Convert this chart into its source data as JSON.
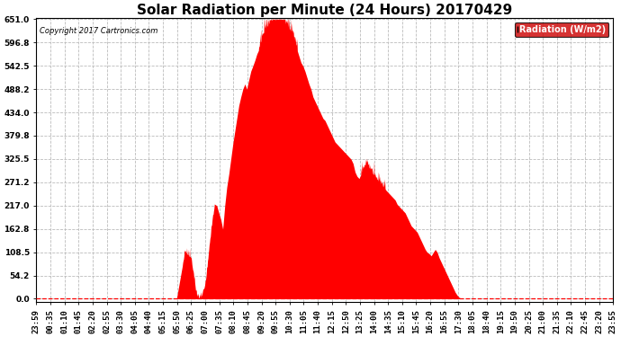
{
  "title": "Solar Radiation per Minute (24 Hours) 20170429",
  "copyright_text": "Copyright 2017 Cartronics.com",
  "legend_label": "Radiation (W/m2)",
  "ylabel_ticks": [
    0.0,
    54.2,
    108.5,
    162.8,
    217.0,
    271.2,
    325.5,
    379.8,
    434.0,
    488.2,
    542.5,
    596.8,
    651.0
  ],
  "ymax": 651.0,
  "ymin": 0.0,
  "fill_color": "#ff0000",
  "line_color": "#ff0000",
  "background_color": "#ffffff",
  "grid_color": "#bbbbbb",
  "dashed_zero_color": "#ff0000",
  "title_fontsize": 11,
  "tick_fontsize": 6.5,
  "legend_bg": "#cc0000",
  "legend_text_color": "#ffffff",
  "x_tick_labels": [
    "23:59",
    "00:35",
    "01:10",
    "01:45",
    "02:20",
    "02:55",
    "03:30",
    "04:05",
    "04:40",
    "05:15",
    "05:50",
    "06:25",
    "07:00",
    "07:35",
    "08:10",
    "08:45",
    "09:20",
    "09:55",
    "10:30",
    "11:05",
    "11:40",
    "12:15",
    "12:50",
    "13:25",
    "14:00",
    "14:35",
    "15:10",
    "15:45",
    "16:20",
    "16:55",
    "17:30",
    "18:05",
    "18:40",
    "19:15",
    "19:50",
    "20:25",
    "21:00",
    "21:35",
    "22:10",
    "22:45",
    "23:20",
    "23:55"
  ],
  "radiation_keypoints": [
    [
      0,
      0
    ],
    [
      349,
      0
    ],
    [
      350,
      2
    ],
    [
      370,
      108
    ],
    [
      385,
      95
    ],
    [
      390,
      60
    ],
    [
      395,
      30
    ],
    [
      400,
      5
    ],
    [
      405,
      0
    ],
    [
      410,
      2
    ],
    [
      415,
      10
    ],
    [
      420,
      30
    ],
    [
      425,
      60
    ],
    [
      430,
      108
    ],
    [
      435,
      150
    ],
    [
      440,
      190
    ],
    [
      445,
      220
    ],
    [
      450,
      217
    ],
    [
      455,
      200
    ],
    [
      460,
      185
    ],
    [
      465,
      162
    ],
    [
      470,
      217
    ],
    [
      475,
      260
    ],
    [
      480,
      290
    ],
    [
      485,
      325
    ],
    [
      490,
      360
    ],
    [
      495,
      390
    ],
    [
      500,
      420
    ],
    [
      505,
      450
    ],
    [
      510,
      470
    ],
    [
      515,
      488
    ],
    [
      520,
      500
    ],
    [
      525,
      488
    ],
    [
      530,
      510
    ],
    [
      535,
      530
    ],
    [
      540,
      542
    ],
    [
      545,
      555
    ],
    [
      550,
      570
    ],
    [
      555,
      580
    ],
    [
      560,
      596
    ],
    [
      565,
      610
    ],
    [
      570,
      620
    ],
    [
      575,
      630
    ],
    [
      580,
      638
    ],
    [
      585,
      645
    ],
    [
      590,
      651
    ],
    [
      595,
      648
    ],
    [
      600,
      645
    ],
    [
      605,
      648
    ],
    [
      610,
      651
    ],
    [
      615,
      648
    ],
    [
      620,
      640
    ],
    [
      625,
      635
    ],
    [
      630,
      628
    ],
    [
      635,
      620
    ],
    [
      640,
      610
    ],
    [
      645,
      596
    ],
    [
      650,
      580
    ],
    [
      655,
      565
    ],
    [
      660,
      550
    ],
    [
      665,
      542
    ],
    [
      670,
      530
    ],
    [
      675,
      515
    ],
    [
      680,
      500
    ],
    [
      685,
      488
    ],
    [
      690,
      470
    ],
    [
      695,
      460
    ],
    [
      700,
      450
    ],
    [
      705,
      440
    ],
    [
      710,
      430
    ],
    [
      715,
      420
    ],
    [
      720,
      415
    ],
    [
      725,
      405
    ],
    [
      730,
      395
    ],
    [
      735,
      385
    ],
    [
      740,
      375
    ],
    [
      745,
      365
    ],
    [
      750,
      360
    ],
    [
      755,
      355
    ],
    [
      760,
      350
    ],
    [
      765,
      345
    ],
    [
      770,
      340
    ],
    [
      775,
      335
    ],
    [
      780,
      330
    ],
    [
      785,
      325
    ],
    [
      790,
      315
    ],
    [
      795,
      295
    ],
    [
      800,
      285
    ],
    [
      805,
      280
    ],
    [
      810,
      290
    ],
    [
      815,
      300
    ],
    [
      820,
      310
    ],
    [
      825,
      315
    ],
    [
      830,
      305
    ],
    [
      835,
      295
    ],
    [
      840,
      285
    ],
    [
      845,
      280
    ],
    [
      850,
      275
    ],
    [
      855,
      270
    ],
    [
      860,
      265
    ],
    [
      865,
      260
    ],
    [
      870,
      255
    ],
    [
      875,
      250
    ],
    [
      880,
      245
    ],
    [
      885,
      240
    ],
    [
      890,
      235
    ],
    [
      895,
      230
    ],
    [
      900,
      220
    ],
    [
      905,
      215
    ],
    [
      910,
      210
    ],
    [
      915,
      205
    ],
    [
      920,
      200
    ],
    [
      925,
      190
    ],
    [
      930,
      180
    ],
    [
      935,
      170
    ],
    [
      940,
      165
    ],
    [
      945,
      160
    ],
    [
      950,
      155
    ],
    [
      955,
      145
    ],
    [
      960,
      135
    ],
    [
      965,
      125
    ],
    [
      970,
      115
    ],
    [
      975,
      108
    ],
    [
      980,
      105
    ],
    [
      985,
      100
    ],
    [
      990,
      108
    ],
    [
      995,
      115
    ],
    [
      1000,
      108
    ],
    [
      1005,
      95
    ],
    [
      1010,
      85
    ],
    [
      1015,
      75
    ],
    [
      1020,
      65
    ],
    [
      1025,
      55
    ],
    [
      1030,
      45
    ],
    [
      1035,
      35
    ],
    [
      1040,
      25
    ],
    [
      1045,
      15
    ],
    [
      1050,
      8
    ],
    [
      1055,
      3
    ],
    [
      1060,
      1
    ],
    [
      1065,
      0
    ],
    [
      1439,
      0
    ]
  ]
}
